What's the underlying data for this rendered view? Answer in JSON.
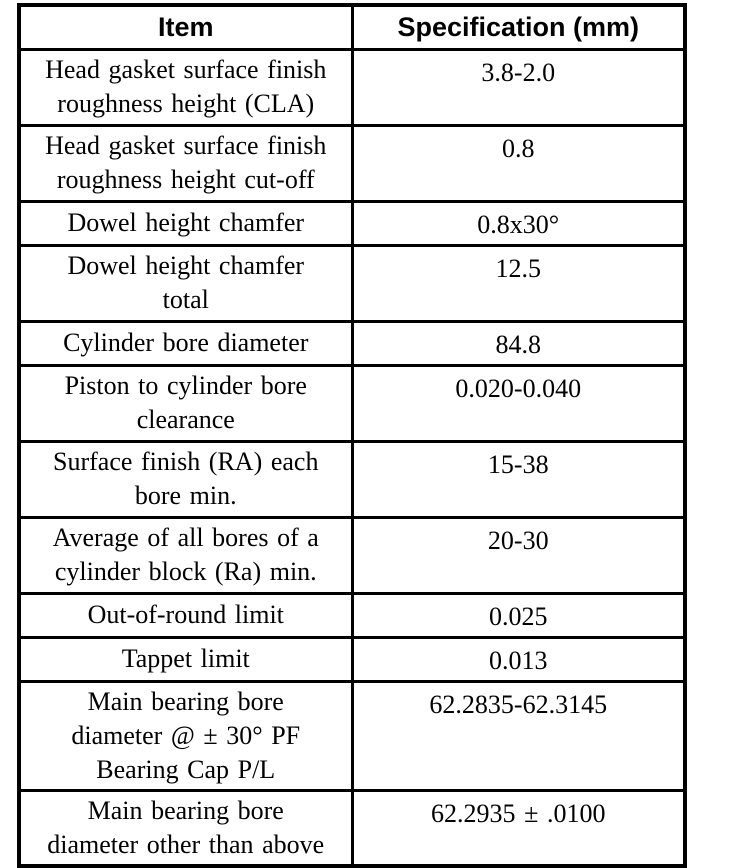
{
  "table": {
    "header": {
      "item_label": "Item",
      "spec_label": "Specification (mm)"
    },
    "text_color": "#000000",
    "border_color": "#000000",
    "background_color": "#ffffff",
    "rows": [
      {
        "item": "Head gasket surface finish\nroughness height (CLA)",
        "spec": "3.8-2.0"
      },
      {
        "item": "Head gasket surface finish\nroughness height cut-off",
        "spec": "0.8"
      },
      {
        "item": "Dowel height chamfer",
        "spec": "0.8x30°"
      },
      {
        "item": "Dowel height chamfer\ntotal",
        "spec": "12.5"
      },
      {
        "item": "Cylinder bore diameter",
        "spec": "84.8"
      },
      {
        "item": "Piston to cylinder bore\nclearance",
        "spec": "0.020-0.040"
      },
      {
        "item": "Surface finish (RA) each\nbore min.",
        "spec": "15-38"
      },
      {
        "item": "Average of all bores of a\ncylinder block (Ra) min.",
        "spec": "20-30"
      },
      {
        "item": "Out-of-round limit",
        "spec": "0.025"
      },
      {
        "item": "Tappet limit",
        "spec": "0.013"
      },
      {
        "item": "Main bearing bore\ndiameter @ ± 30° PF\nBearing Cap P/L",
        "spec": "62.2835-62.3145"
      },
      {
        "item": "Main bearing bore\ndiameter other than above",
        "spec": "62.2935 ± .0100"
      }
    ]
  }
}
